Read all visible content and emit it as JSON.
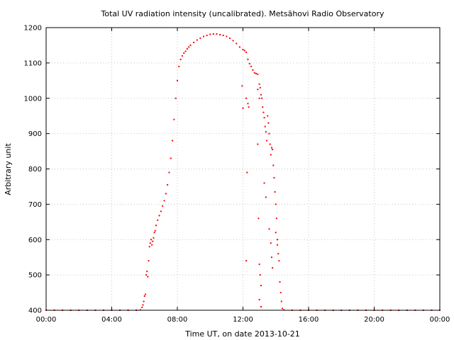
{
  "chart_data": {
    "type": "scatter",
    "title": "Total UV radiation intensity (uncalibrated). Metsähovi Radio Observatory",
    "xlabel": "Time UT, on date 2013-10-21",
    "ylabel": "Arbitrary unit",
    "xlim": [
      0,
      24
    ],
    "ylim": [
      400,
      1200
    ],
    "x_ticks": [
      {
        "value": 0,
        "label": "00:00"
      },
      {
        "value": 4,
        "label": "04:00"
      },
      {
        "value": 8,
        "label": "08:00"
      },
      {
        "value": 12,
        "label": "12:00"
      },
      {
        "value": 16,
        "label": "16:00"
      },
      {
        "value": 20,
        "label": "20:00"
      },
      {
        "value": 24,
        "label": "00:00"
      }
    ],
    "y_ticks": [
      {
        "value": 400,
        "label": "400"
      },
      {
        "value": 500,
        "label": "500"
      },
      {
        "value": 600,
        "label": "600"
      },
      {
        "value": 700,
        "label": "700"
      },
      {
        "value": 800,
        "label": "800"
      },
      {
        "value": 900,
        "label": "900"
      },
      {
        "value": 1000,
        "label": "1000"
      },
      {
        "value": 1100,
        "label": "1100"
      },
      {
        "value": 1200,
        "label": "1200"
      }
    ],
    "grid": true,
    "series_color": "#ff0000",
    "series": [
      {
        "points": [
          [
            0.0,
            400
          ],
          [
            0.5,
            400
          ],
          [
            1.0,
            400
          ],
          [
            1.5,
            400
          ],
          [
            2.0,
            400
          ],
          [
            2.5,
            400
          ],
          [
            3.0,
            400
          ],
          [
            3.5,
            400
          ],
          [
            4.0,
            400
          ],
          [
            4.5,
            400
          ],
          [
            5.0,
            400
          ],
          [
            5.5,
            400
          ],
          [
            5.75,
            401
          ],
          [
            5.85,
            408
          ],
          [
            5.9,
            415
          ],
          [
            5.95,
            425
          ],
          [
            6.0,
            440
          ],
          [
            6.05,
            445
          ],
          [
            6.1,
            500
          ],
          [
            6.15,
            510
          ],
          [
            6.2,
            495
          ],
          [
            6.25,
            540
          ],
          [
            6.3,
            580
          ],
          [
            6.35,
            590
          ],
          [
            6.4,
            600
          ],
          [
            6.45,
            585
          ],
          [
            6.5,
            595
          ],
          [
            6.55,
            605
          ],
          [
            6.6,
            620
          ],
          [
            6.65,
            625
          ],
          [
            6.7,
            640
          ],
          [
            6.8,
            655
          ],
          [
            6.9,
            668
          ],
          [
            7.0,
            680
          ],
          [
            7.1,
            695
          ],
          [
            7.2,
            710
          ],
          [
            7.3,
            730
          ],
          [
            7.4,
            755
          ],
          [
            7.5,
            790
          ],
          [
            7.6,
            830
          ],
          [
            7.7,
            880
          ],
          [
            7.8,
            940
          ],
          [
            7.9,
            1000
          ],
          [
            8.0,
            1050
          ],
          [
            8.1,
            1090
          ],
          [
            8.2,
            1110
          ],
          [
            8.3,
            1120
          ],
          [
            8.4,
            1128
          ],
          [
            8.5,
            1133
          ],
          [
            8.6,
            1140
          ],
          [
            8.7,
            1145
          ],
          [
            8.8,
            1150
          ],
          [
            9.0,
            1158
          ],
          [
            9.2,
            1165
          ],
          [
            9.4,
            1170
          ],
          [
            9.6,
            1175
          ],
          [
            9.8,
            1178
          ],
          [
            10.0,
            1181
          ],
          [
            10.2,
            1182
          ],
          [
            10.4,
            1182
          ],
          [
            10.6,
            1180
          ],
          [
            10.8,
            1178
          ],
          [
            11.0,
            1175
          ],
          [
            11.2,
            1170
          ],
          [
            11.4,
            1163
          ],
          [
            11.6,
            1155
          ],
          [
            11.8,
            1145
          ],
          [
            12.0,
            1138
          ],
          [
            12.1,
            1135
          ],
          [
            12.2,
            1130
          ],
          [
            12.3,
            1110
          ],
          [
            12.4,
            1098
          ],
          [
            12.5,
            1090
          ],
          [
            12.6,
            1080
          ],
          [
            12.7,
            1072
          ],
          [
            12.8,
            1070
          ],
          [
            12.9,
            1068
          ],
          [
            11.95,
            1035
          ],
          [
            12.0,
            972
          ],
          [
            12.2,
            1000
          ],
          [
            12.3,
            985
          ],
          [
            12.35,
            975
          ],
          [
            12.25,
            790
          ],
          [
            12.2,
            540
          ],
          [
            12.9,
            1025
          ],
          [
            13.0,
            1040
          ],
          [
            13.05,
            1030
          ],
          [
            13.1,
            1010
          ],
          [
            13.15,
            1000
          ],
          [
            13.2,
            975
          ],
          [
            13.25,
            960
          ],
          [
            13.3,
            945
          ],
          [
            13.35,
            920
          ],
          [
            13.4,
            905
          ],
          [
            13.45,
            880
          ],
          [
            13.5,
            950
          ],
          [
            13.55,
            930
          ],
          [
            13.6,
            900
          ],
          [
            13.65,
            870
          ],
          [
            13.7,
            840
          ],
          [
            13.75,
            860
          ],
          [
            13.8,
            855
          ],
          [
            13.85,
            810
          ],
          [
            13.9,
            775
          ],
          [
            13.95,
            735
          ],
          [
            14.0,
            700
          ],
          [
            14.05,
            660
          ],
          [
            14.1,
            600
          ],
          [
            14.15,
            560
          ],
          [
            14.2,
            540
          ],
          [
            14.25,
            480
          ],
          [
            14.3,
            450
          ],
          [
            14.35,
            425
          ],
          [
            14.4,
            405
          ],
          [
            13.0,
            1000
          ],
          [
            12.9,
            870
          ],
          [
            12.95,
            660
          ],
          [
            13.0,
            530
          ],
          [
            13.05,
            500
          ],
          [
            13.1,
            470
          ],
          [
            13.0,
            430
          ],
          [
            13.1,
            410
          ],
          [
            13.3,
            760
          ],
          [
            13.4,
            720
          ],
          [
            13.6,
            630
          ],
          [
            13.7,
            590
          ],
          [
            13.75,
            550
          ],
          [
            13.8,
            520
          ],
          [
            14.0,
            620
          ],
          [
            14.1,
            585
          ],
          [
            14.5,
            401
          ],
          [
            15.0,
            400
          ],
          [
            15.5,
            400
          ],
          [
            16.0,
            400
          ],
          [
            16.5,
            400
          ],
          [
            17.0,
            400
          ],
          [
            17.5,
            400
          ],
          [
            18.0,
            400
          ],
          [
            18.5,
            400
          ],
          [
            19.0,
            400
          ],
          [
            19.5,
            400
          ],
          [
            20.0,
            400
          ],
          [
            20.5,
            400
          ],
          [
            21.0,
            400
          ],
          [
            21.5,
            400
          ],
          [
            22.0,
            400
          ],
          [
            22.5,
            400
          ],
          [
            23.0,
            400
          ],
          [
            23.5,
            400
          ],
          [
            24.0,
            400
          ]
        ]
      }
    ]
  }
}
